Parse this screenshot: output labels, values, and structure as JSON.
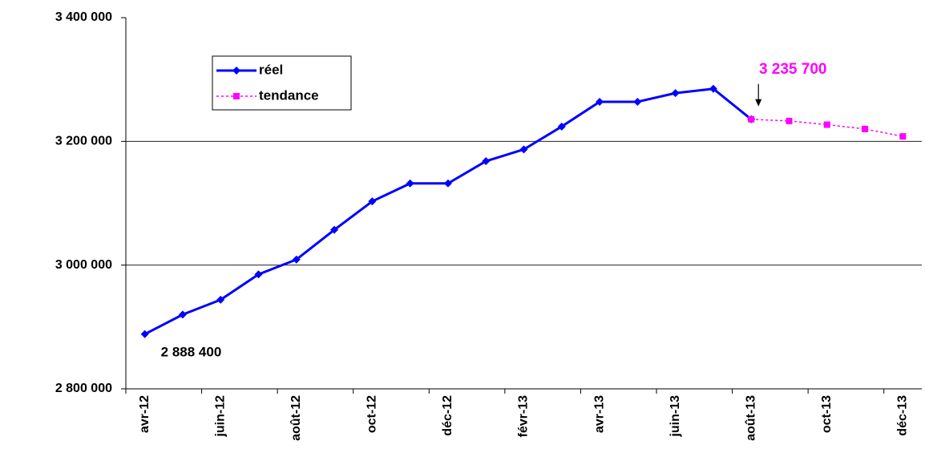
{
  "chart_data": {
    "type": "line",
    "categories": [
      "avr-12",
      null,
      "juin-12",
      null,
      "août-12",
      null,
      "oct-12",
      null,
      "déc-12",
      null,
      "févr-13",
      null,
      "avr-13",
      null,
      "juin-13",
      null,
      "août-13",
      null,
      "oct-13",
      null,
      "déc-13"
    ],
    "series": [
      {
        "name": "réel",
        "color": "#0000ff",
        "marker": "diamond",
        "line_style": "solid",
        "values": [
          2888400,
          2920000,
          2944000,
          2985000,
          3009000,
          3057000,
          3103000,
          3132000,
          3132000,
          3168000,
          3187000,
          3224000,
          3264000,
          3264000,
          3278000,
          3285000,
          3235700,
          null,
          null,
          null,
          null
        ],
        "value_labels": [
          "2 888 400",
          null,
          null,
          null,
          null,
          null,
          null,
          null,
          null,
          null,
          null,
          null,
          null,
          null,
          null,
          null,
          null,
          null,
          null,
          null,
          null
        ]
      },
      {
        "name": "tendance",
        "color": "#ff00ff",
        "marker": "square",
        "line_style": "dotted",
        "values": [
          null,
          null,
          null,
          null,
          null,
          null,
          null,
          null,
          null,
          null,
          null,
          null,
          null,
          null,
          null,
          null,
          3235700,
          3233000,
          3227000,
          3220000,
          3208000
        ],
        "value_labels": [
          null,
          null,
          null,
          null,
          null,
          null,
          null,
          null,
          null,
          null,
          null,
          null,
          null,
          null,
          null,
          null,
          "3 235 700",
          null,
          null,
          null,
          null
        ]
      }
    ],
    "ylim": [
      2800000,
      3400000
    ],
    "yticks": [
      {
        "value": 2800000,
        "label": "2 800 000"
      },
      {
        "value": 3000000,
        "label": "3 000 000"
      },
      {
        "value": 3200000,
        "label": "3 200 000"
      },
      {
        "value": 3400000,
        "label": "3 400 000"
      }
    ],
    "grid": true,
    "legend": "top-left"
  }
}
